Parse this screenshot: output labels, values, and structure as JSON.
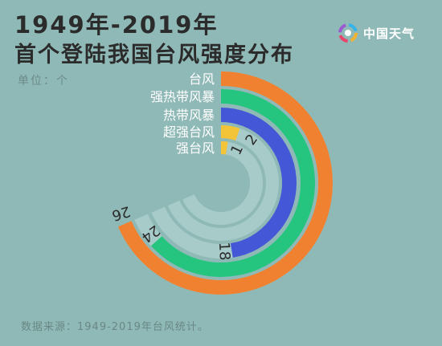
{
  "header": {
    "title_line1": "1949年-2019年",
    "title_line2": "首个登陆我国台风强度分布",
    "unit": "单位：个"
  },
  "brand": {
    "name": "中国天气",
    "icon": "swirl-logo-icon"
  },
  "footer": {
    "source": "数据来源：1949-2019年台风统计。"
  },
  "chart_data": {
    "type": "radial-bar",
    "title": "首个登陆我国台风强度分布",
    "unit": "个",
    "categories": [
      "台风",
      "强热带风暴",
      "热带风暴",
      "超强台风",
      "强台风"
    ],
    "values": [
      26,
      24,
      18,
      2,
      1
    ],
    "max": 26,
    "colors": [
      "#ef8130",
      "#25c47f",
      "#4457d6",
      "#f3c338",
      "#f3c338"
    ],
    "track_color": "#a7cbc9"
  }
}
